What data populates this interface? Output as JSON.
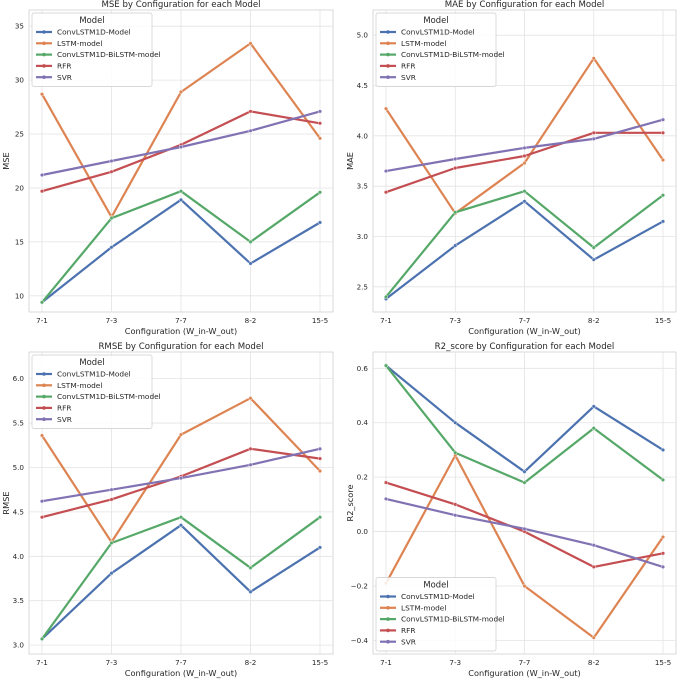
{
  "chart_data": [
    {
      "type": "line",
      "title": "MSE by Configuration for each Model",
      "xlabel": "Configuration (W_in-W_out)",
      "ylabel": "MSE",
      "categories": [
        "7-1",
        "7-3",
        "7-7",
        "8-2",
        "15-5"
      ],
      "ylim": [
        8.5,
        36.5
      ],
      "yticks": [
        10,
        15,
        20,
        25,
        30,
        35
      ],
      "yticklabels": [
        "10",
        "15",
        "20",
        "25",
        "30",
        "35"
      ],
      "grid": true,
      "legend": {
        "title": "Model",
        "position": "top-left"
      },
      "series": [
        {
          "name": "ConvLSTM1D-Model",
          "color": "#4c72b0",
          "values": [
            9.4,
            14.5,
            18.9,
            13.0,
            16.8
          ]
        },
        {
          "name": "LSTM-model",
          "color": "#dd8452",
          "values": [
            28.7,
            17.3,
            28.9,
            33.4,
            24.6
          ]
        },
        {
          "name": "ConvLSTM1D-BiLSTM-model",
          "color": "#55a868",
          "values": [
            9.4,
            17.2,
            19.7,
            15.0,
            19.6
          ]
        },
        {
          "name": "RFR",
          "color": "#c44e52",
          "values": [
            19.7,
            21.5,
            24.0,
            27.1,
            26.0
          ]
        },
        {
          "name": "SVR",
          "color": "#8172b3",
          "values": [
            21.2,
            22.5,
            23.8,
            25.3,
            27.1
          ]
        }
      ]
    },
    {
      "type": "line",
      "title": "MAE by Configuration for each Model",
      "xlabel": "Configuration (W_in-W_out)",
      "ylabel": "MAE",
      "categories": [
        "7-1",
        "7-3",
        "7-7",
        "8-2",
        "15-5"
      ],
      "ylim": [
        2.25,
        5.25
      ],
      "yticks": [
        2.5,
        3.0,
        3.5,
        4.0,
        4.5,
        5.0
      ],
      "yticklabels": [
        "2.5",
        "3.0",
        "3.5",
        "4.0",
        "4.5",
        "5.0"
      ],
      "grid": true,
      "legend": {
        "title": "Model",
        "position": "top-left"
      },
      "series": [
        {
          "name": "ConvLSTM1D-Model",
          "color": "#4c72b0",
          "values": [
            2.38,
            2.91,
            3.35,
            2.77,
            3.15
          ]
        },
        {
          "name": "LSTM-model",
          "color": "#dd8452",
          "values": [
            4.27,
            3.23,
            3.73,
            4.77,
            3.76
          ]
        },
        {
          "name": "ConvLSTM1D-BiLSTM-model",
          "color": "#55a868",
          "values": [
            2.4,
            3.24,
            3.45,
            2.89,
            3.41
          ]
        },
        {
          "name": "RFR",
          "color": "#c44e52",
          "values": [
            3.44,
            3.68,
            3.8,
            4.03,
            4.03
          ]
        },
        {
          "name": "SVR",
          "color": "#8172b3",
          "values": [
            3.65,
            3.77,
            3.88,
            3.97,
            4.16
          ]
        }
      ]
    },
    {
      "type": "line",
      "title": "RMSE by Configuration for each Model",
      "xlabel": "Configuration (W_in-W_out)",
      "ylabel": "RMSE",
      "categories": [
        "7-1",
        "7-3",
        "7-7",
        "8-2",
        "15-5"
      ],
      "ylim": [
        2.9,
        6.3
      ],
      "yticks": [
        3.0,
        3.5,
        4.0,
        4.5,
        5.0,
        5.5,
        6.0
      ],
      "yticklabels": [
        "3.0",
        "3.5",
        "4.0",
        "4.5",
        "5.0",
        "5.5",
        "6.0"
      ],
      "grid": true,
      "legend": {
        "title": "Model",
        "position": "top-left"
      },
      "series": [
        {
          "name": "ConvLSTM1D-Model",
          "color": "#4c72b0",
          "values": [
            3.07,
            3.81,
            4.35,
            3.6,
            4.1
          ]
        },
        {
          "name": "LSTM-model",
          "color": "#dd8452",
          "values": [
            5.36,
            4.16,
            5.37,
            5.78,
            4.96
          ]
        },
        {
          "name": "ConvLSTM1D-BiLSTM-model",
          "color": "#55a868",
          "values": [
            3.07,
            4.15,
            4.44,
            3.87,
            4.44
          ]
        },
        {
          "name": "RFR",
          "color": "#c44e52",
          "values": [
            4.44,
            4.64,
            4.9,
            5.21,
            5.1
          ]
        },
        {
          "name": "SVR",
          "color": "#8172b3",
          "values": [
            4.62,
            4.75,
            4.88,
            5.03,
            5.21
          ]
        }
      ]
    },
    {
      "type": "line",
      "title": "R2_score by Configuration for each Model",
      "xlabel": "Configuration (W_in-W_out)",
      "ylabel": "R2_score",
      "categories": [
        "7-1",
        "7-3",
        "7-7",
        "8-2",
        "15-5"
      ],
      "ylim": [
        -0.45,
        0.66
      ],
      "yticks": [
        -0.4,
        -0.2,
        0.0,
        0.2,
        0.4,
        0.6
      ],
      "yticklabels": [
        "−0.4",
        "−0.2",
        "0.0",
        "0.2",
        "0.4",
        "0.6"
      ],
      "grid": true,
      "legend": {
        "title": "Model",
        "position": "bottom-left"
      },
      "series": [
        {
          "name": "ConvLSTM1D-Model",
          "color": "#4c72b0",
          "values": [
            0.61,
            0.4,
            0.22,
            0.46,
            0.3
          ]
        },
        {
          "name": "LSTM-model",
          "color": "#dd8452",
          "values": [
            -0.19,
            0.28,
            -0.2,
            -0.39,
            -0.02
          ]
        },
        {
          "name": "ConvLSTM1D-BiLSTM-model",
          "color": "#55a868",
          "values": [
            0.61,
            0.29,
            0.18,
            0.38,
            0.19
          ]
        },
        {
          "name": "RFR",
          "color": "#c44e52",
          "values": [
            0.18,
            0.1,
            0.0,
            -0.13,
            -0.08
          ]
        },
        {
          "name": "SVR",
          "color": "#8172b3",
          "values": [
            0.12,
            0.06,
            0.01,
            -0.05,
            -0.13
          ]
        }
      ]
    }
  ]
}
